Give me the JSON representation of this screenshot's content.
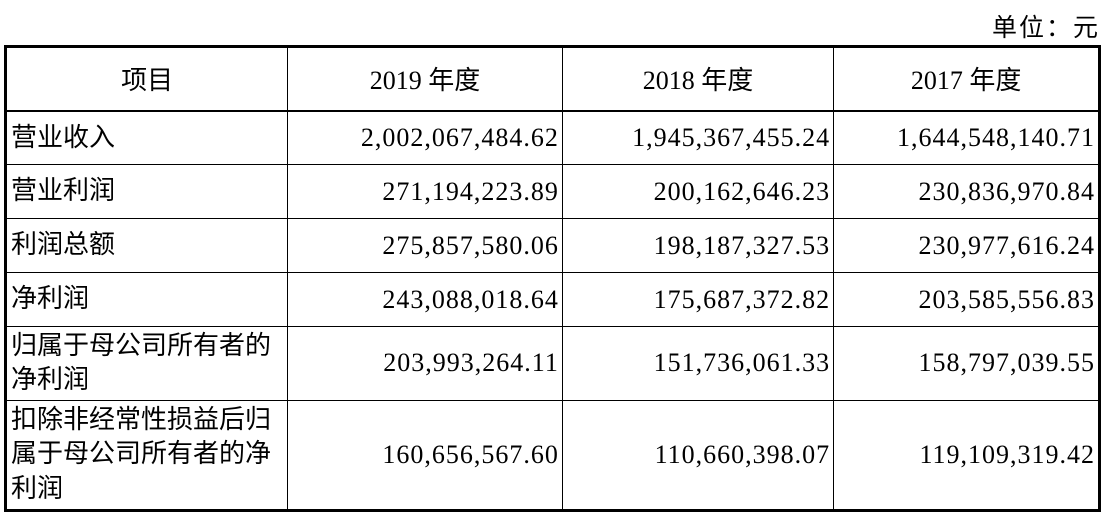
{
  "page": {
    "unit_label": "单位：元"
  },
  "table": {
    "headers": [
      "项目",
      "2019 年度",
      "2018 年度",
      "2017 年度"
    ],
    "rows": [
      [
        "营业收入",
        "2,002,067,484.62",
        "1,945,367,455.24",
        "1,644,548,140.71"
      ],
      [
        "营业利润",
        "271,194,223.89",
        "200,162,646.23",
        "230,836,970.84"
      ],
      [
        "利润总额",
        "275,857,580.06",
        "198,187,327.53",
        "230,977,616.24"
      ],
      [
        "净利润",
        "243,088,018.64",
        "175,687,372.82",
        "203,585,556.83"
      ],
      [
        "归属于母公司所有者的净利润",
        "203,993,264.11",
        "151,736,061.33",
        "158,797,039.55"
      ],
      [
        "扣除非经常性损益后归属于母公司所有者的净利润",
        "160,656,567.60",
        "110,660,398.07",
        "119,109,319.42"
      ]
    ]
  },
  "colors": {
    "border": "#000000",
    "text": "#000000",
    "background": "#ffffff"
  }
}
